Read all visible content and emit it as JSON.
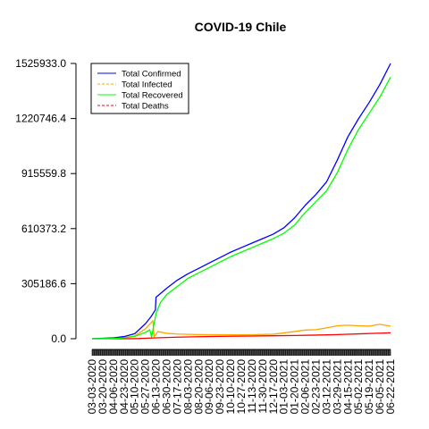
{
  "chart_data": {
    "type": "line",
    "title": "COVID-19 Chile",
    "xlabel": "",
    "ylabel": "",
    "x": [
      "03-03-2020",
      "06-22-2021"
    ],
    "ylim": [
      0,
      1525933.0
    ],
    "y_ticks": [
      "0.0",
      "305186.6",
      "610373.2",
      "915559.8",
      "1220746.4",
      "1525933.0"
    ],
    "x_tick_labels": [
      "03-03-2020",
      "03-20-2020",
      "04-06-2020",
      "04-23-2020",
      "05-10-2020",
      "05-27-2020",
      "06-13-2020",
      "06-30-2020",
      "07-17-2020",
      "08-03-2020",
      "08-20-2020",
      "09-06-2020",
      "09-23-2020",
      "10-10-2020",
      "10-27-2020",
      "11-13-2020",
      "11-30-2020",
      "12-17-2020",
      "01-03-2021",
      "01-20-2021",
      "02-06-2021",
      "02-23-2021",
      "03-12-2021",
      "03-29-2021",
      "04-15-2021",
      "05-02-2021",
      "05-19-2021",
      "06-05-2021",
      "06-22-2021"
    ],
    "legend_position": "top-left",
    "series": [
      {
        "name": "Total Confirmed",
        "color": "#0000ff",
        "style": "solid",
        "points": [
          [
            "03-03-2020",
            0
          ],
          [
            "04-06-2020",
            5000
          ],
          [
            "04-23-2020",
            12000
          ],
          [
            "05-10-2020",
            28000
          ],
          [
            "05-20-2020",
            60000
          ],
          [
            "05-27-2020",
            83000
          ],
          [
            "06-05-2020",
            122000
          ],
          [
            "06-12-2020",
            160000
          ],
          [
            "06-13-2020",
            230000
          ],
          [
            "06-20-2020",
            250000
          ],
          [
            "06-30-2020",
            280000
          ],
          [
            "07-17-2020",
            325000
          ],
          [
            "08-03-2020",
            360000
          ],
          [
            "08-20-2020",
            390000
          ],
          [
            "09-06-2020",
            420000
          ],
          [
            "09-23-2020",
            450000
          ],
          [
            "10-10-2020",
            480000
          ],
          [
            "10-27-2020",
            505000
          ],
          [
            "11-13-2020",
            530000
          ],
          [
            "11-30-2020",
            555000
          ],
          [
            "12-17-2020",
            580000
          ],
          [
            "01-03-2021",
            615000
          ],
          [
            "01-20-2021",
            670000
          ],
          [
            "02-06-2021",
            740000
          ],
          [
            "02-23-2021",
            800000
          ],
          [
            "03-12-2021",
            870000
          ],
          [
            "03-29-2021",
            990000
          ],
          [
            "04-15-2021",
            1120000
          ],
          [
            "05-02-2021",
            1220000
          ],
          [
            "05-19-2021",
            1310000
          ],
          [
            "06-05-2021",
            1410000
          ],
          [
            "06-22-2021",
            1525933
          ]
        ]
      },
      {
        "name": "Total Infected",
        "color": "#ffa500",
        "style": "dashed",
        "points": [
          [
            "03-03-2020",
            0
          ],
          [
            "04-06-2020",
            3000
          ],
          [
            "04-23-2020",
            6000
          ],
          [
            "05-10-2020",
            15000
          ],
          [
            "05-27-2020",
            55000
          ],
          [
            "06-08-2020",
            100000
          ],
          [
            "06-10-2020",
            12000
          ],
          [
            "06-13-2020",
            25000
          ],
          [
            "06-16-2020",
            40000
          ],
          [
            "06-30-2020",
            30000
          ],
          [
            "07-17-2020",
            26000
          ],
          [
            "08-03-2020",
            24000
          ],
          [
            "09-06-2020",
            22000
          ],
          [
            "10-10-2020",
            22000
          ],
          [
            "11-13-2020",
            22000
          ],
          [
            "12-17-2020",
            25000
          ],
          [
            "01-20-2021",
            40000
          ],
          [
            "02-06-2021",
            48000
          ],
          [
            "02-23-2021",
            50000
          ],
          [
            "03-12-2021",
            60000
          ],
          [
            "03-29-2021",
            72000
          ],
          [
            "04-15-2021",
            75000
          ],
          [
            "05-02-2021",
            72000
          ],
          [
            "05-19-2021",
            70000
          ],
          [
            "06-05-2021",
            80000
          ],
          [
            "06-22-2021",
            70000
          ]
        ]
      },
      {
        "name": "Total Recovered",
        "color": "#00ff00",
        "style": "solid",
        "points": [
          [
            "03-03-2020",
            0
          ],
          [
            "04-06-2020",
            1500
          ],
          [
            "04-23-2020",
            5000
          ],
          [
            "05-10-2020",
            13000
          ],
          [
            "05-27-2020",
            35000
          ],
          [
            "06-03-2020",
            50000
          ],
          [
            "06-06-2020",
            10000
          ],
          [
            "06-13-2020",
            140000
          ],
          [
            "06-20-2020",
            200000
          ],
          [
            "06-30-2020",
            245000
          ],
          [
            "07-17-2020",
            290000
          ],
          [
            "08-03-2020",
            335000
          ],
          [
            "08-20-2020",
            365000
          ],
          [
            "09-06-2020",
            395000
          ],
          [
            "09-23-2020",
            425000
          ],
          [
            "10-10-2020",
            455000
          ],
          [
            "10-27-2020",
            480000
          ],
          [
            "11-13-2020",
            505000
          ],
          [
            "11-30-2020",
            530000
          ],
          [
            "12-17-2020",
            555000
          ],
          [
            "01-03-2021",
            585000
          ],
          [
            "01-20-2021",
            630000
          ],
          [
            "02-06-2021",
            700000
          ],
          [
            "02-23-2021",
            760000
          ],
          [
            "03-12-2021",
            820000
          ],
          [
            "03-29-2021",
            920000
          ],
          [
            "04-15-2021",
            1050000
          ],
          [
            "05-02-2021",
            1160000
          ],
          [
            "05-19-2021",
            1250000
          ],
          [
            "06-05-2021",
            1340000
          ],
          [
            "06-22-2021",
            1450000
          ]
        ]
      },
      {
        "name": "Total Deaths",
        "color": "#ff0000",
        "style": "dashed",
        "points": [
          [
            "03-03-2020",
            0
          ],
          [
            "05-10-2020",
            400
          ],
          [
            "06-13-2020",
            5000
          ],
          [
            "06-30-2020",
            7000
          ],
          [
            "07-17-2020",
            8500
          ],
          [
            "08-20-2020",
            11000
          ],
          [
            "09-23-2020",
            13000
          ],
          [
            "10-27-2020",
            14500
          ],
          [
            "12-17-2020",
            16500
          ],
          [
            "01-20-2021",
            18000
          ],
          [
            "02-23-2021",
            20000
          ],
          [
            "03-29-2021",
            23000
          ],
          [
            "05-02-2021",
            27000
          ],
          [
            "06-05-2021",
            31000
          ],
          [
            "06-22-2021",
            33000
          ]
        ]
      }
    ]
  }
}
